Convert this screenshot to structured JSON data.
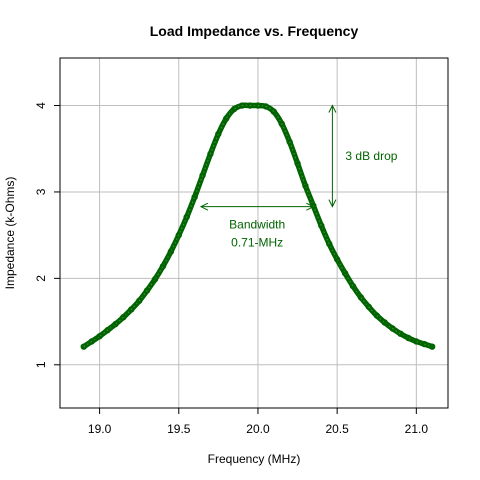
{
  "chart_data": {
    "type": "line",
    "title": "Load Impedance vs. Frequency",
    "xlabel": "Frequency (MHz)",
    "ylabel": "Impedance (k-Ohms)",
    "xlim": [
      18.75,
      21.2
    ],
    "ylim": [
      0.5,
      4.55
    ],
    "grid": true,
    "x_ticks": [
      19.0,
      19.5,
      20.0,
      20.5,
      21.0
    ],
    "x_tick_labels": [
      "19.0",
      "19.5",
      "20.0",
      "20.5",
      "21.0"
    ],
    "y_ticks": [
      1,
      2,
      3,
      4
    ],
    "y_tick_labels": [
      "1",
      "2",
      "3",
      "4"
    ],
    "series": [
      {
        "color": "#006400",
        "marker": "open-circle",
        "peak_x": 20.0,
        "peak_y": 4.0,
        "x": [
          18.9,
          18.95,
          19.0,
          19.05,
          19.1,
          19.15,
          19.2,
          19.25,
          19.3,
          19.35,
          19.4,
          19.45,
          19.5,
          19.55,
          19.6,
          19.65,
          19.7,
          19.75,
          19.8,
          19.85,
          19.9,
          19.95,
          20.0,
          20.05,
          20.1,
          20.15,
          20.2,
          20.25,
          20.3,
          20.35,
          20.4,
          20.45,
          20.5,
          20.55,
          20.6,
          20.65,
          20.7,
          20.75,
          20.8,
          20.85,
          20.9,
          20.95,
          21.0,
          21.05,
          21.1
        ],
        "y": [
          1.21,
          1.27,
          1.33,
          1.4,
          1.47,
          1.55,
          1.64,
          1.74,
          1.86,
          1.99,
          2.14,
          2.31,
          2.5,
          2.71,
          2.94,
          3.19,
          3.44,
          3.67,
          3.85,
          3.96,
          4.0,
          4.0,
          4.0,
          3.99,
          3.93,
          3.79,
          3.58,
          3.33,
          3.07,
          2.84,
          2.61,
          2.4,
          2.22,
          2.06,
          1.91,
          1.78,
          1.67,
          1.57,
          1.49,
          1.42,
          1.36,
          1.31,
          1.27,
          1.24,
          1.21
        ]
      }
    ],
    "annotations": [
      {
        "type": "horizontal-arrow",
        "label": "Bandwidth",
        "value_label": "0.71-MHz",
        "x_from": 19.64,
        "x_to": 20.35,
        "y": 2.83
      },
      {
        "type": "vertical-arrow",
        "label": "3 dB drop",
        "x": 20.47,
        "y_from": 2.83,
        "y_to": 4.0
      }
    ],
    "colors": {
      "series": "#006400",
      "grid": "#bebebe",
      "axis": "#000000"
    }
  }
}
